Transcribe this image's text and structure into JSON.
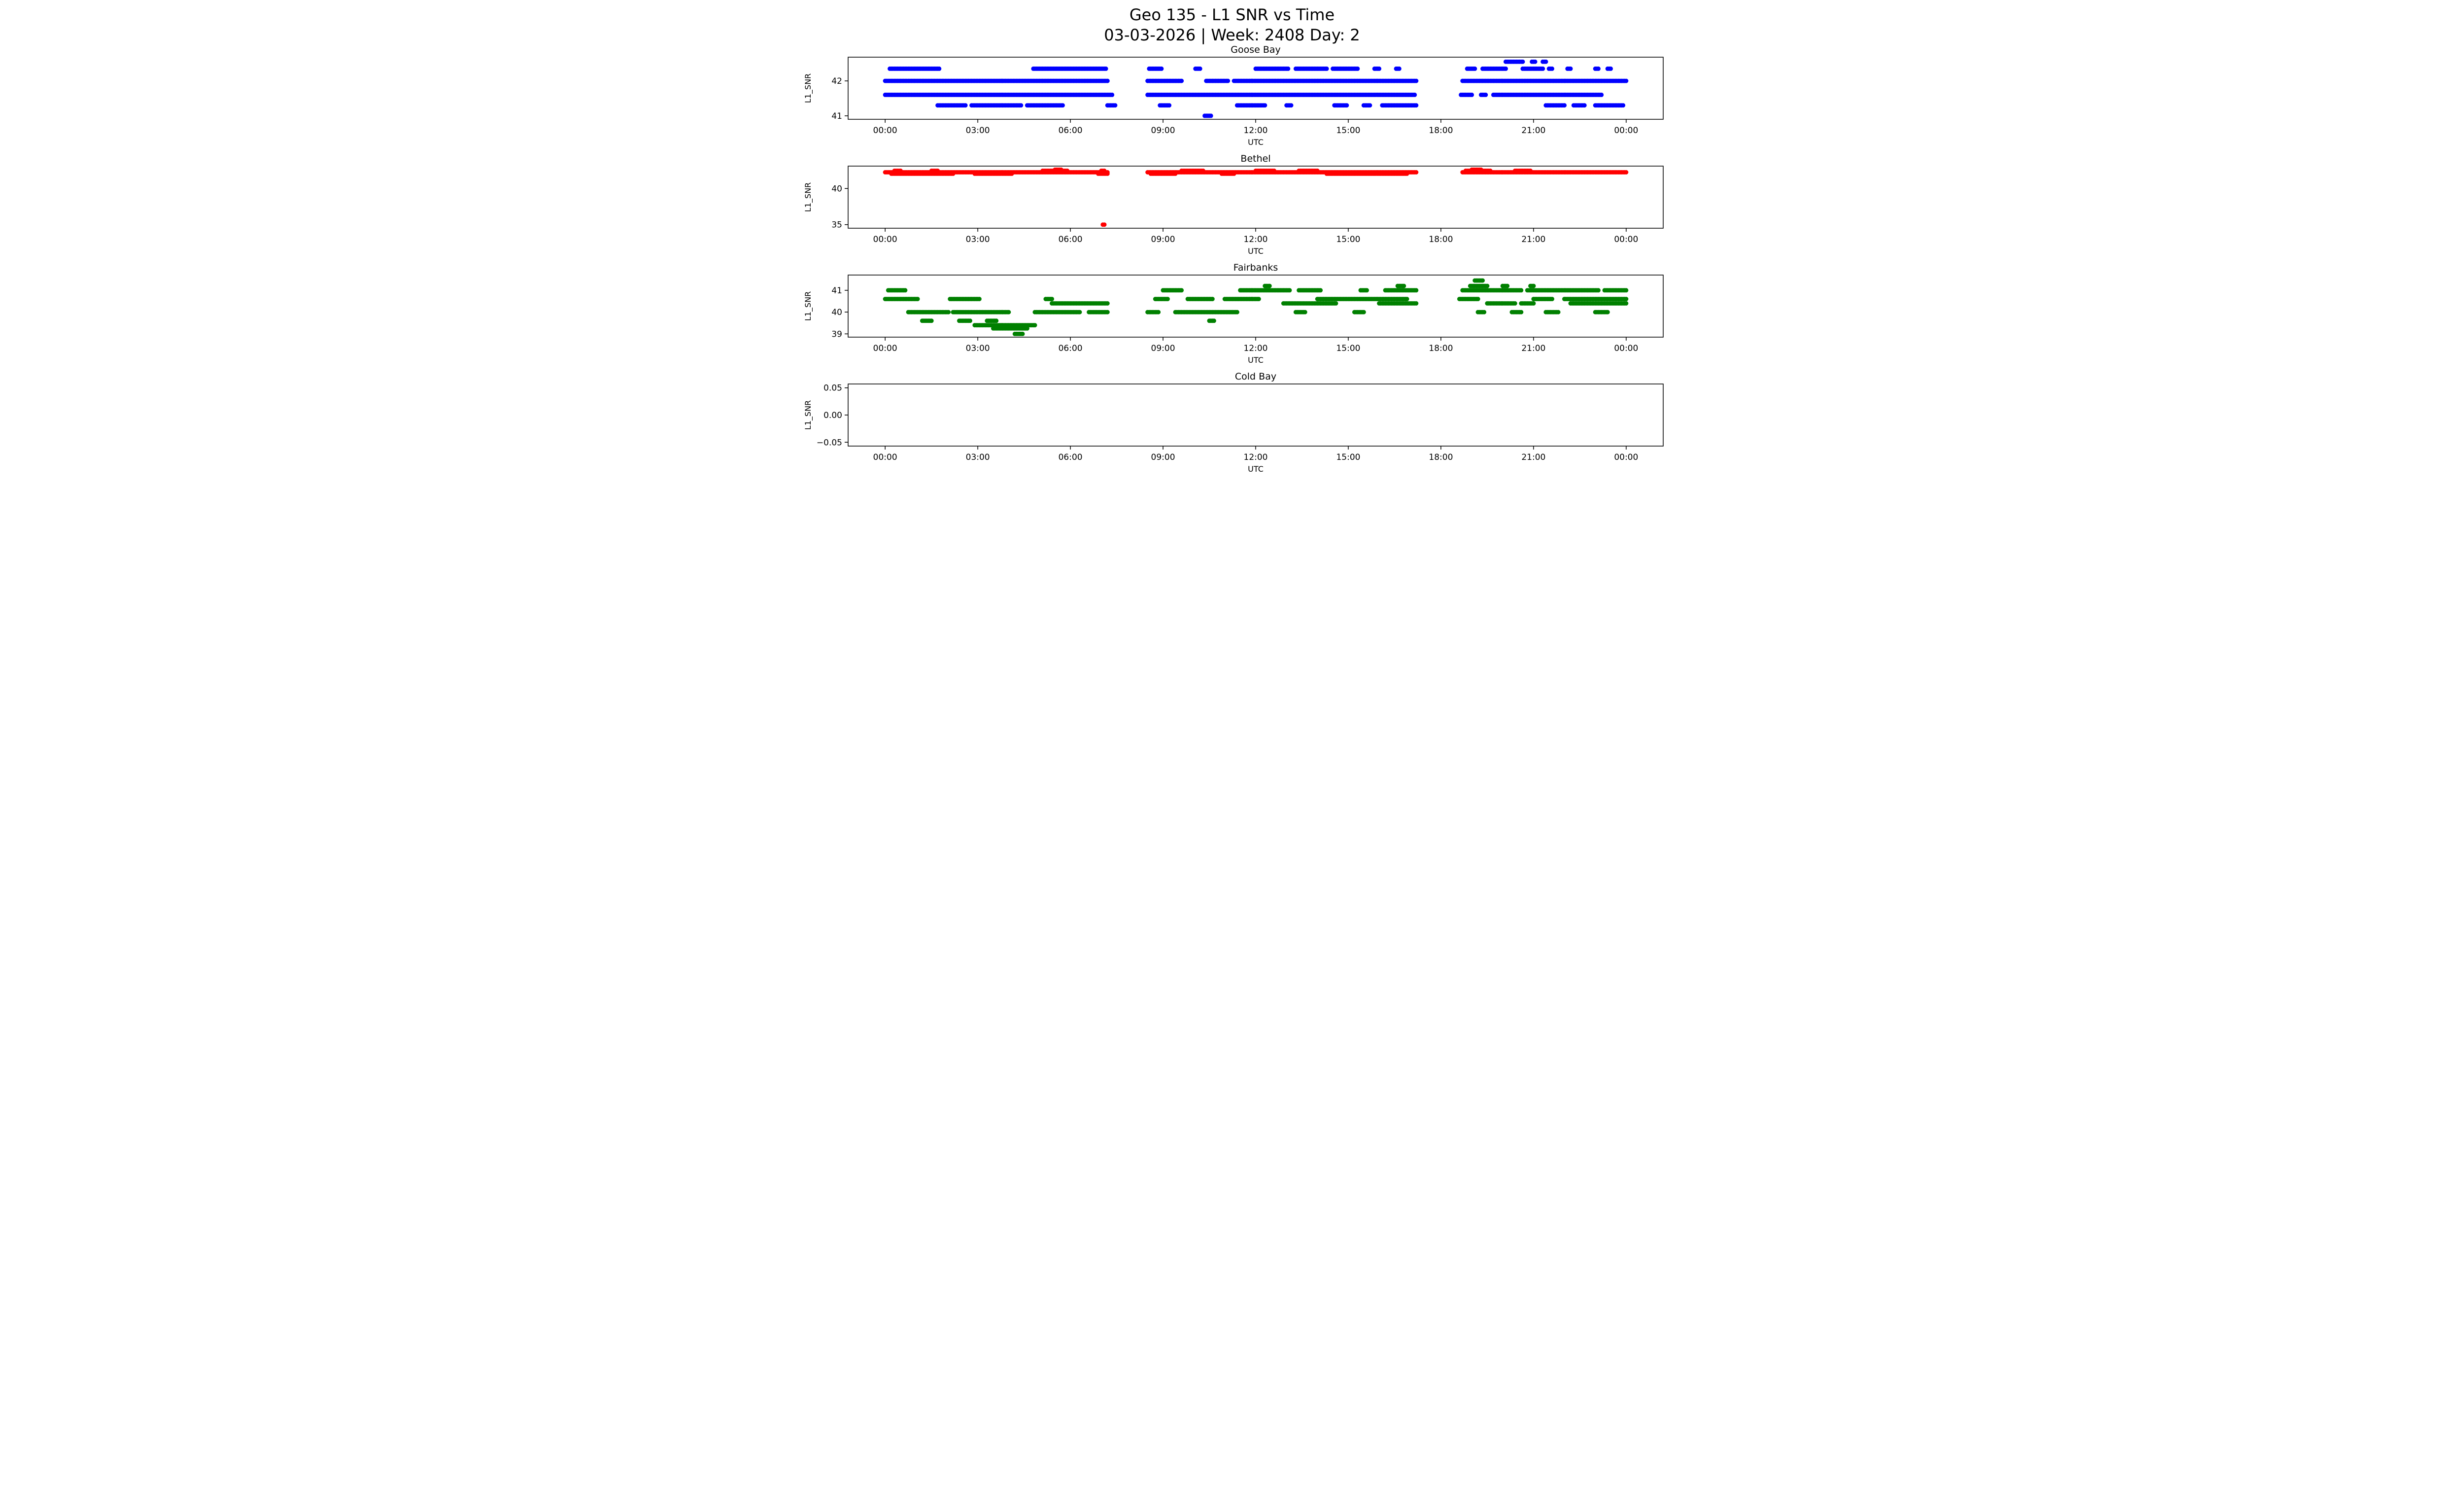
{
  "figure": {
    "title_line1": "Geo 135 - L1 SNR vs Time",
    "title_line2": "03-03-2026 | Week: 2408 Day: 2"
  },
  "chart_data": [
    {
      "type": "scatter",
      "title": "Goose Bay",
      "color": "#0000ff",
      "xlabel": "UTC",
      "ylabel": "L1_SNR",
      "xlim": [
        -1.2,
        25.2
      ],
      "ylim": [
        40.9,
        42.68
      ],
      "xticks": {
        "values": [
          0,
          3,
          6,
          9,
          12,
          15,
          18,
          21,
          24
        ],
        "labels": [
          "00:00",
          "03:00",
          "06:00",
          "09:00",
          "12:00",
          "15:00",
          "18:00",
          "21:00",
          "00:00"
        ]
      },
      "yticks": {
        "values": [
          41,
          42
        ],
        "labels": [
          "41",
          "42"
        ]
      },
      "grid": false,
      "segments": [
        [
          42.55,
          20.1,
          20.65
        ],
        [
          42.55,
          20.95,
          21.05
        ],
        [
          42.55,
          21.3,
          21.4
        ],
        [
          42.35,
          0.15,
          1.75
        ],
        [
          42.35,
          4.8,
          7.15
        ],
        [
          42.35,
          8.55,
          8.95
        ],
        [
          42.35,
          10.05,
          10.2
        ],
        [
          42.35,
          12.0,
          13.05
        ],
        [
          42.35,
          13.3,
          14.3
        ],
        [
          42.35,
          14.5,
          15.3
        ],
        [
          42.35,
          15.85,
          16.0
        ],
        [
          42.35,
          16.55,
          16.65
        ],
        [
          42.35,
          18.85,
          19.1
        ],
        [
          42.35,
          19.35,
          20.1
        ],
        [
          42.35,
          20.65,
          21.3
        ],
        [
          42.35,
          21.5,
          21.6
        ],
        [
          42.35,
          22.1,
          22.2
        ],
        [
          42.35,
          23.0,
          23.1
        ],
        [
          42.35,
          23.4,
          23.5
        ],
        [
          42.0,
          0.0,
          7.2
        ],
        [
          42.0,
          8.5,
          9.6
        ],
        [
          42.0,
          10.4,
          11.1
        ],
        [
          42.0,
          11.3,
          17.2
        ],
        [
          42.0,
          18.7,
          24.0
        ],
        [
          41.6,
          0.0,
          7.35
        ],
        [
          41.6,
          8.5,
          17.15
        ],
        [
          41.6,
          18.65,
          19.0
        ],
        [
          41.6,
          19.3,
          19.45
        ],
        [
          41.6,
          19.7,
          23.2
        ],
        [
          41.3,
          1.7,
          2.6
        ],
        [
          41.3,
          2.8,
          4.4
        ],
        [
          41.3,
          4.6,
          5.75
        ],
        [
          41.3,
          7.2,
          7.45
        ],
        [
          41.3,
          8.9,
          9.2
        ],
        [
          41.3,
          11.4,
          12.3
        ],
        [
          41.3,
          13.0,
          13.15
        ],
        [
          41.3,
          14.55,
          14.95
        ],
        [
          41.3,
          15.5,
          15.7
        ],
        [
          41.3,
          16.1,
          17.2
        ],
        [
          41.3,
          21.4,
          22.0
        ],
        [
          41.3,
          22.3,
          22.65
        ],
        [
          41.3,
          23.0,
          23.9
        ],
        [
          41.0,
          10.35,
          10.55
        ]
      ]
    },
    {
      "type": "scatter",
      "title": "Bethel",
      "color": "#ff0000",
      "xlabel": "UTC",
      "ylabel": "L1_SNR",
      "xlim": [
        -1.2,
        25.2
      ],
      "ylim": [
        34.5,
        43.1
      ],
      "xticks": {
        "values": [
          0,
          3,
          6,
          9,
          12,
          15,
          18,
          21,
          24
        ],
        "labels": [
          "00:00",
          "03:00",
          "06:00",
          "09:00",
          "12:00",
          "15:00",
          "18:00",
          "21:00",
          "00:00"
        ]
      },
      "yticks": {
        "values": [
          35,
          40
        ],
        "labels": [
          "35",
          "40"
        ]
      },
      "grid": false,
      "segments": [
        [
          42.25,
          0.0,
          7.2
        ],
        [
          42.25,
          8.5,
          17.2
        ],
        [
          42.25,
          18.7,
          24.0
        ],
        [
          42.45,
          0.3,
          0.5
        ],
        [
          42.45,
          1.5,
          1.7
        ],
        [
          42.45,
          5.1,
          5.9
        ],
        [
          42.45,
          7.0,
          7.1
        ],
        [
          42.45,
          9.6,
          10.3
        ],
        [
          42.45,
          12.0,
          12.6
        ],
        [
          42.45,
          13.4,
          14.0
        ],
        [
          42.45,
          18.8,
          19.6
        ],
        [
          42.45,
          20.4,
          20.9
        ],
        [
          42.6,
          5.5,
          5.7
        ],
        [
          42.6,
          19.0,
          19.3
        ],
        [
          42.05,
          0.2,
          2.2
        ],
        [
          42.05,
          2.9,
          4.1
        ],
        [
          42.05,
          6.9,
          7.2
        ],
        [
          42.05,
          8.6,
          9.4
        ],
        [
          42.05,
          10.9,
          11.3
        ],
        [
          42.05,
          14.3,
          16.9
        ],
        [
          35.0,
          7.05,
          7.1
        ]
      ]
    },
    {
      "type": "scatter",
      "title": "Fairbanks",
      "color": "#008000",
      "xlabel": "UTC",
      "ylabel": "L1_SNR",
      "xlim": [
        -1.2,
        25.2
      ],
      "ylim": [
        38.85,
        41.7
      ],
      "xticks": {
        "values": [
          0,
          3,
          6,
          9,
          12,
          15,
          18,
          21,
          24
        ],
        "labels": [
          "00:00",
          "03:00",
          "06:00",
          "09:00",
          "12:00",
          "15:00",
          "18:00",
          "21:00",
          "00:00"
        ]
      },
      "yticks": {
        "values": [
          39,
          40,
          41
        ],
        "labels": [
          "39",
          "40",
          "41"
        ]
      },
      "grid": false,
      "segments": [
        [
          41.45,
          19.1,
          19.35
        ],
        [
          41.2,
          12.3,
          12.45
        ],
        [
          41.2,
          16.6,
          16.8
        ],
        [
          41.2,
          18.95,
          19.5
        ],
        [
          41.2,
          20.0,
          20.15
        ],
        [
          41.2,
          20.9,
          21.0
        ],
        [
          41.0,
          0.1,
          0.65
        ],
        [
          41.0,
          9.0,
          9.6
        ],
        [
          41.0,
          11.5,
          13.1
        ],
        [
          41.0,
          13.4,
          14.1
        ],
        [
          41.0,
          15.4,
          15.6
        ],
        [
          41.0,
          16.2,
          17.2
        ],
        [
          41.0,
          18.7,
          20.6
        ],
        [
          41.0,
          20.8,
          23.1
        ],
        [
          41.0,
          23.3,
          24.0
        ],
        [
          40.6,
          0.0,
          1.05
        ],
        [
          40.6,
          2.1,
          3.05
        ],
        [
          40.6,
          5.2,
          5.4
        ],
        [
          40.6,
          8.75,
          9.15
        ],
        [
          40.6,
          9.8,
          10.6
        ],
        [
          40.6,
          11.0,
          12.1
        ],
        [
          40.6,
          14.0,
          16.9
        ],
        [
          40.6,
          18.6,
          19.2
        ],
        [
          40.6,
          21.0,
          21.6
        ],
        [
          40.6,
          22.0,
          24.0
        ],
        [
          40.4,
          5.4,
          7.2
        ],
        [
          40.4,
          12.9,
          14.6
        ],
        [
          40.4,
          16.0,
          17.2
        ],
        [
          40.4,
          19.5,
          20.4
        ],
        [
          40.4,
          20.6,
          21.0
        ],
        [
          40.4,
          22.2,
          24.0
        ],
        [
          40.0,
          0.75,
          2.05
        ],
        [
          40.0,
          2.2,
          4.0
        ],
        [
          40.0,
          4.85,
          6.3
        ],
        [
          40.0,
          6.6,
          7.2
        ],
        [
          40.0,
          8.5,
          8.85
        ],
        [
          40.0,
          9.4,
          11.4
        ],
        [
          40.0,
          13.3,
          13.6
        ],
        [
          40.0,
          15.2,
          15.5
        ],
        [
          40.0,
          19.2,
          19.4
        ],
        [
          40.0,
          20.3,
          20.6
        ],
        [
          40.0,
          21.4,
          21.8
        ],
        [
          40.0,
          23.0,
          23.4
        ],
        [
          39.6,
          1.2,
          1.5
        ],
        [
          39.6,
          2.4,
          2.75
        ],
        [
          39.6,
          3.3,
          3.6
        ],
        [
          39.6,
          10.5,
          10.65
        ],
        [
          39.4,
          2.9,
          4.85
        ],
        [
          39.25,
          3.5,
          4.6
        ],
        [
          39.0,
          4.2,
          4.45
        ]
      ]
    },
    {
      "type": "scatter",
      "title": "Cold Bay",
      "color": null,
      "xlabel": "UTC",
      "ylabel": "L1_SNR",
      "xlim": [
        -1.2,
        25.2
      ],
      "ylim": [
        -0.057,
        0.057
      ],
      "xticks": {
        "values": [
          0,
          3,
          6,
          9,
          12,
          15,
          18,
          21,
          24
        ],
        "labels": [
          "00:00",
          "03:00",
          "06:00",
          "09:00",
          "12:00",
          "15:00",
          "18:00",
          "21:00",
          "00:00"
        ]
      },
      "yticks": {
        "values": [
          -0.05,
          0.0,
          0.05
        ],
        "labels": [
          "−0.05",
          "0.00",
          "0.05"
        ]
      },
      "grid": false,
      "segments": []
    }
  ]
}
